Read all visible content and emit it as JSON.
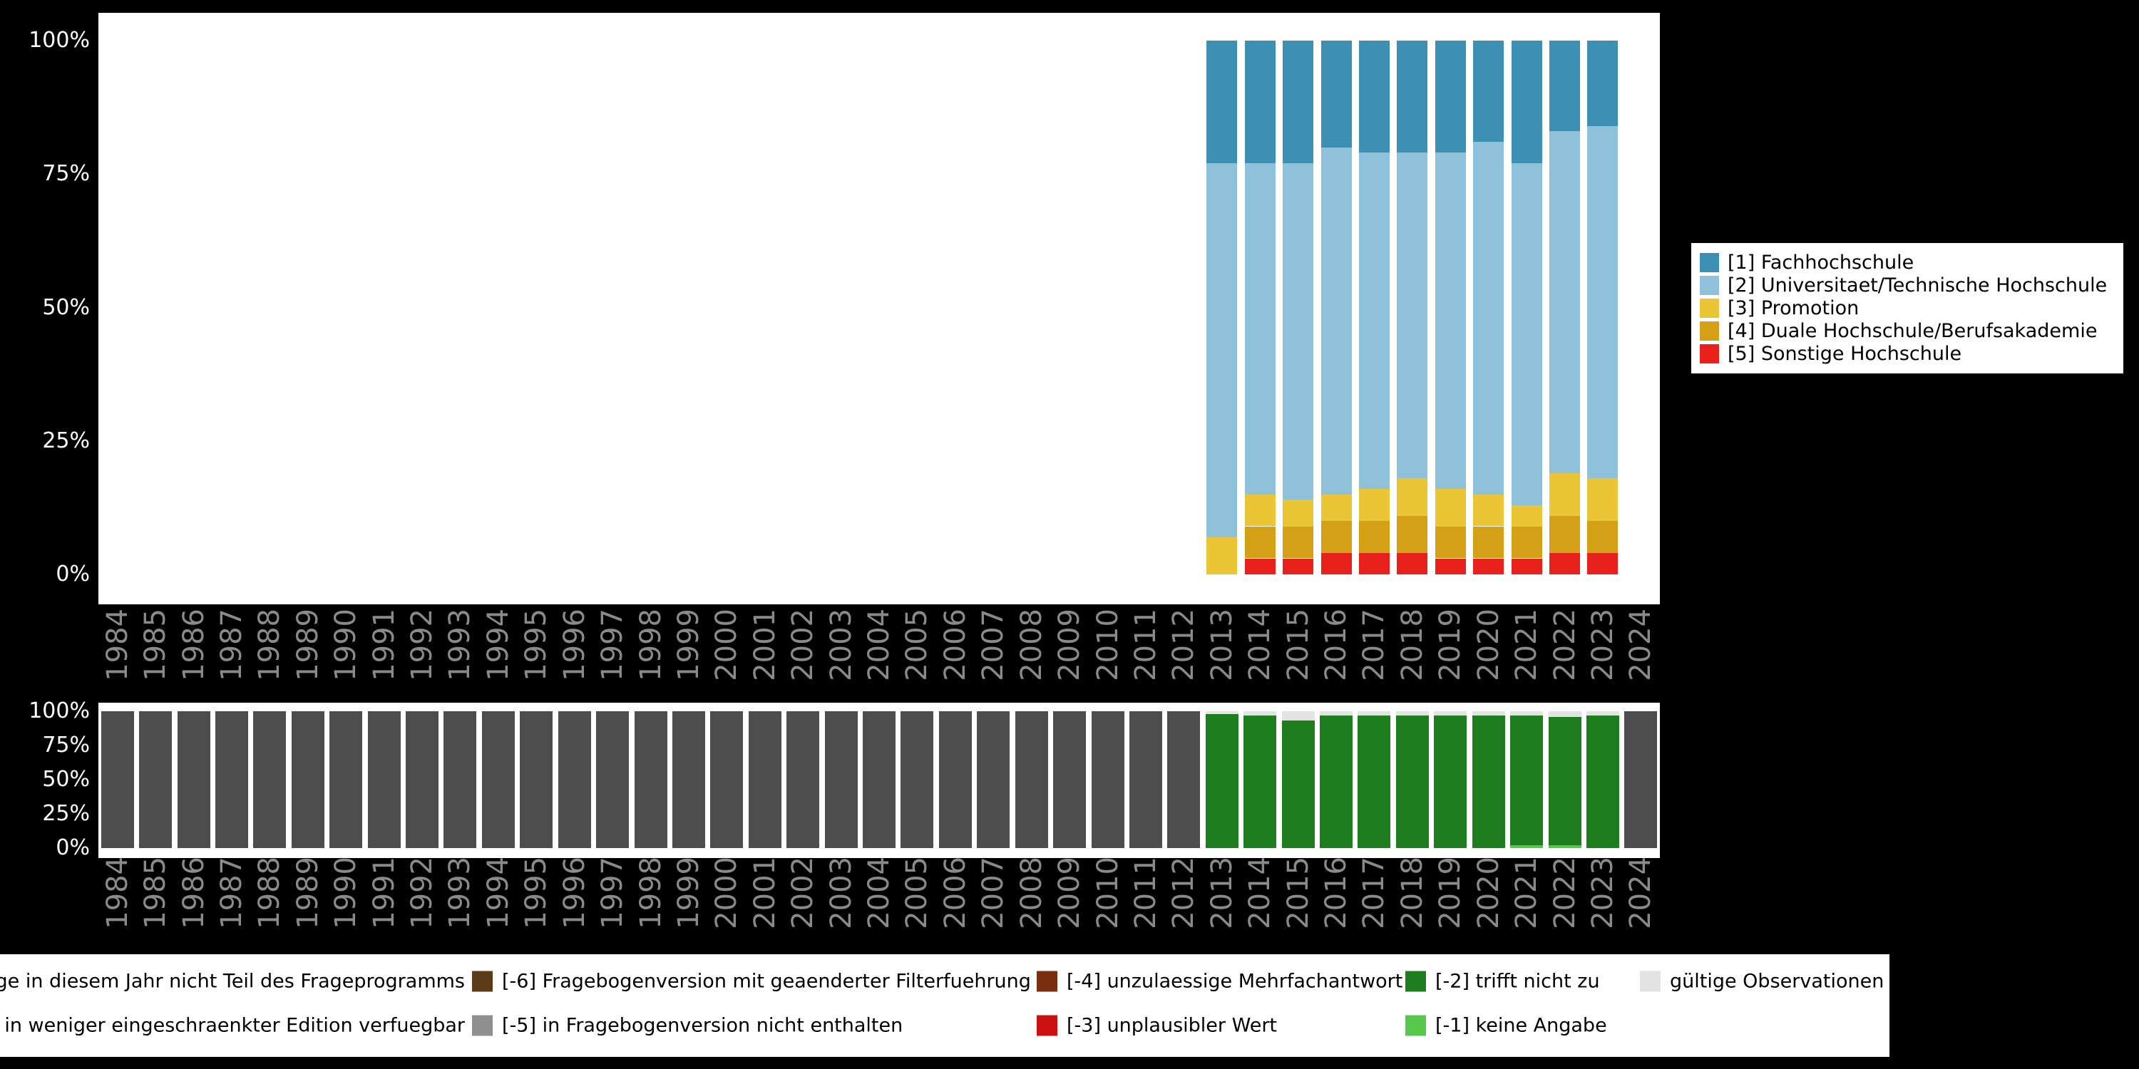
{
  "colors": {
    "background": "#000000",
    "plot_background": "#ffffff",
    "year_label_text": "#8a8a8a",
    "ytick_text": "#ffffff",
    "legend_text": "#000000"
  },
  "chart_data": [
    {
      "type": "bar",
      "stacked": true,
      "title": "",
      "xlabel": "",
      "ylabel": "",
      "ylim": [
        0,
        100
      ],
      "yticks": [
        "0%",
        "25%",
        "50%",
        "75%",
        "100%"
      ],
      "categories": [
        2013,
        2014,
        2015,
        2016,
        2017,
        2018,
        2019,
        2020,
        2021,
        2022,
        2023
      ],
      "series_order": "bottom-to-top",
      "series": [
        {
          "name": "[5] Sonstige Hochschule",
          "color": "#e8211d",
          "values": [
            0,
            3,
            3,
            4,
            4,
            4,
            3,
            3,
            3,
            4,
            4
          ]
        },
        {
          "name": "[4] Duale Hochschule/Berufsakademie",
          "color": "#d4a017",
          "values": [
            0,
            6,
            6,
            6,
            6,
            7,
            6,
            6,
            6,
            7,
            6
          ]
        },
        {
          "name": "[3] Promotion",
          "color": "#eac636",
          "values": [
            7,
            6,
            5,
            5,
            6,
            7,
            7,
            6,
            4,
            8,
            8
          ]
        },
        {
          "name": "[2] Universitaet/Technische Hochschule",
          "color": "#8fc2da",
          "values": [
            70,
            62,
            63,
            65,
            63,
            61,
            63,
            66,
            64,
            64,
            66
          ]
        },
        {
          "name": "[1] Fachhochschule",
          "color": "#3e8fb4",
          "values": [
            23,
            23,
            23,
            20,
            21,
            21,
            21,
            19,
            23,
            17,
            16
          ]
        }
      ],
      "legend_position": "right"
    },
    {
      "type": "bar",
      "stacked": true,
      "title": "",
      "xlabel": "",
      "ylabel": "",
      "ylim": [
        0,
        100
      ],
      "yticks": [
        "0%",
        "25%",
        "50%",
        "75%",
        "100%"
      ],
      "categories": [
        1984,
        1985,
        1986,
        1987,
        1988,
        1989,
        1990,
        1991,
        1992,
        1993,
        1994,
        1995,
        1996,
        1997,
        1998,
        1999,
        2000,
        2001,
        2002,
        2003,
        2004,
        2005,
        2006,
        2007,
        2008,
        2009,
        2010,
        2011,
        2012,
        2013,
        2014,
        2015,
        2016,
        2017,
        2018,
        2019,
        2020,
        2021,
        2022,
        2023,
        2024
      ],
      "series_order": "bottom-to-top",
      "series": [
        {
          "name": "[-1] keine Angabe",
          "color": "#57c84b",
          "values": [
            0,
            0,
            0,
            0,
            0,
            0,
            0,
            0,
            0,
            0,
            0,
            0,
            0,
            0,
            0,
            0,
            0,
            0,
            0,
            0,
            0,
            0,
            0,
            0,
            0,
            0,
            0,
            0,
            0,
            0,
            0,
            0,
            0,
            0,
            0,
            0,
            0,
            2,
            2,
            0,
            0
          ]
        },
        {
          "name": "[-2] trifft nicht zu",
          "color": "#1e7e1e",
          "values": [
            0,
            0,
            0,
            0,
            0,
            0,
            0,
            0,
            0,
            0,
            0,
            0,
            0,
            0,
            0,
            0,
            0,
            0,
            0,
            0,
            0,
            0,
            0,
            0,
            0,
            0,
            0,
            0,
            0,
            98,
            97,
            93,
            97,
            97,
            97,
            97,
            97,
            95,
            94,
            97,
            0
          ]
        },
        {
          "name": "gültige Observationen",
          "color": "#e3e3e3",
          "values": [
            0,
            0,
            0,
            0,
            0,
            0,
            0,
            0,
            0,
            0,
            0,
            0,
            0,
            0,
            0,
            0,
            0,
            0,
            0,
            0,
            0,
            0,
            0,
            0,
            0,
            0,
            0,
            0,
            0,
            2,
            3,
            7,
            3,
            3,
            3,
            3,
            3,
            3,
            4,
            3,
            0
          ]
        },
        {
          "name": "nicht Teil des Frageprogramms",
          "color": "#4d4d4d",
          "values": [
            100,
            100,
            100,
            100,
            100,
            100,
            100,
            100,
            100,
            100,
            100,
            100,
            100,
            100,
            100,
            100,
            100,
            100,
            100,
            100,
            100,
            100,
            100,
            100,
            100,
            100,
            100,
            100,
            100,
            0,
            0,
            0,
            0,
            0,
            0,
            0,
            0,
            0,
            0,
            0,
            100
          ]
        }
      ],
      "legend_position": "bottom"
    }
  ],
  "category_legend": {
    "items": [
      {
        "label": "[1] Fachhochschule",
        "color": "#3e8fb4"
      },
      {
        "label": "[2] Universitaet/Technische Hochschule",
        "color": "#8fc2da"
      },
      {
        "label": "[3] Promotion",
        "color": "#eac636"
      },
      {
        "label": "[4] Duale Hochschule/Berufsakademie",
        "color": "#d4a017"
      },
      {
        "label": "[5] Sonstige Hochschule",
        "color": "#e8211d"
      }
    ]
  },
  "missing_legend": {
    "rows": [
      [
        {
          "label": "ge in diesem Jahr nicht Teil des Frageprogramms",
          "color": null,
          "cut": true
        },
        {
          "label": "[-6] Fragebogenversion mit geaenderter Filterfuehrung",
          "color": "#5b3a1a",
          "cut": false
        },
        {
          "label": "[-4] unzulaessige Mehrfachantwort",
          "color": "#7a2e10",
          "cut": false
        },
        {
          "label": "[-2] trifft nicht zu",
          "color": "#1e7e1e",
          "cut": false
        },
        {
          "label": "gültige Observationen",
          "color": "#e3e3e3",
          "cut": false
        }
      ],
      [
        {
          "label": "in weniger eingeschraenkter Edition verfuegbar",
          "color": null,
          "cut": true
        },
        {
          "label": "[-5] in Fragebogenversion nicht enthalten",
          "color": "#8f8f8f",
          "cut": false
        },
        {
          "label": "[-3] unplausibler Wert",
          "color": "#cc1111",
          "cut": false
        },
        {
          "label": "[-1] keine Angabe",
          "color": "#57c84b",
          "cut": false
        }
      ]
    ]
  }
}
